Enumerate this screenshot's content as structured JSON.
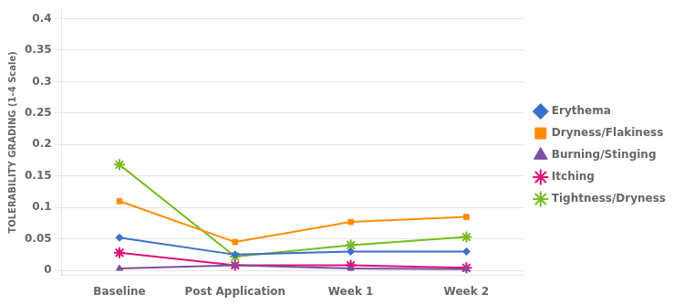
{
  "chart_data": {
    "type": "line",
    "categories": [
      "Baseline",
      "Post Application",
      "Week 1",
      "Week 2"
    ],
    "series": [
      {
        "name": "Erythema",
        "color": "#3B6FCC",
        "marker": "diamond",
        "values": [
          0.052,
          0.025,
          0.03,
          0.03
        ]
      },
      {
        "name": "Dryness/Flakiness",
        "color": "#FF8C00",
        "marker": "square",
        "values": [
          0.11,
          0.045,
          0.077,
          0.085
        ]
      },
      {
        "name": "Burning/Stinging",
        "color": "#7B4EA0",
        "marker": "triangle",
        "values": [
          0.003,
          0.008,
          0.003,
          0.002
        ]
      },
      {
        "name": "Itching",
        "color": "#DD1177",
        "marker": "star",
        "values": [
          0.028,
          0.008,
          0.008,
          0.004
        ]
      },
      {
        "name": "Tightness/Dryness",
        "color": "#77BB22",
        "marker": "star",
        "values": [
          0.168,
          0.022,
          0.04,
          0.053
        ]
      }
    ],
    "ylabel": "TOLERABILITY GRADING (1-4 Scale)",
    "ylim": [
      -0.008,
      0.415
    ],
    "yticks": [
      0.0,
      0.05,
      0.1,
      0.15,
      0.2,
      0.25,
      0.3,
      0.35,
      0.4
    ],
    "grid": "y",
    "legend": "right"
  }
}
